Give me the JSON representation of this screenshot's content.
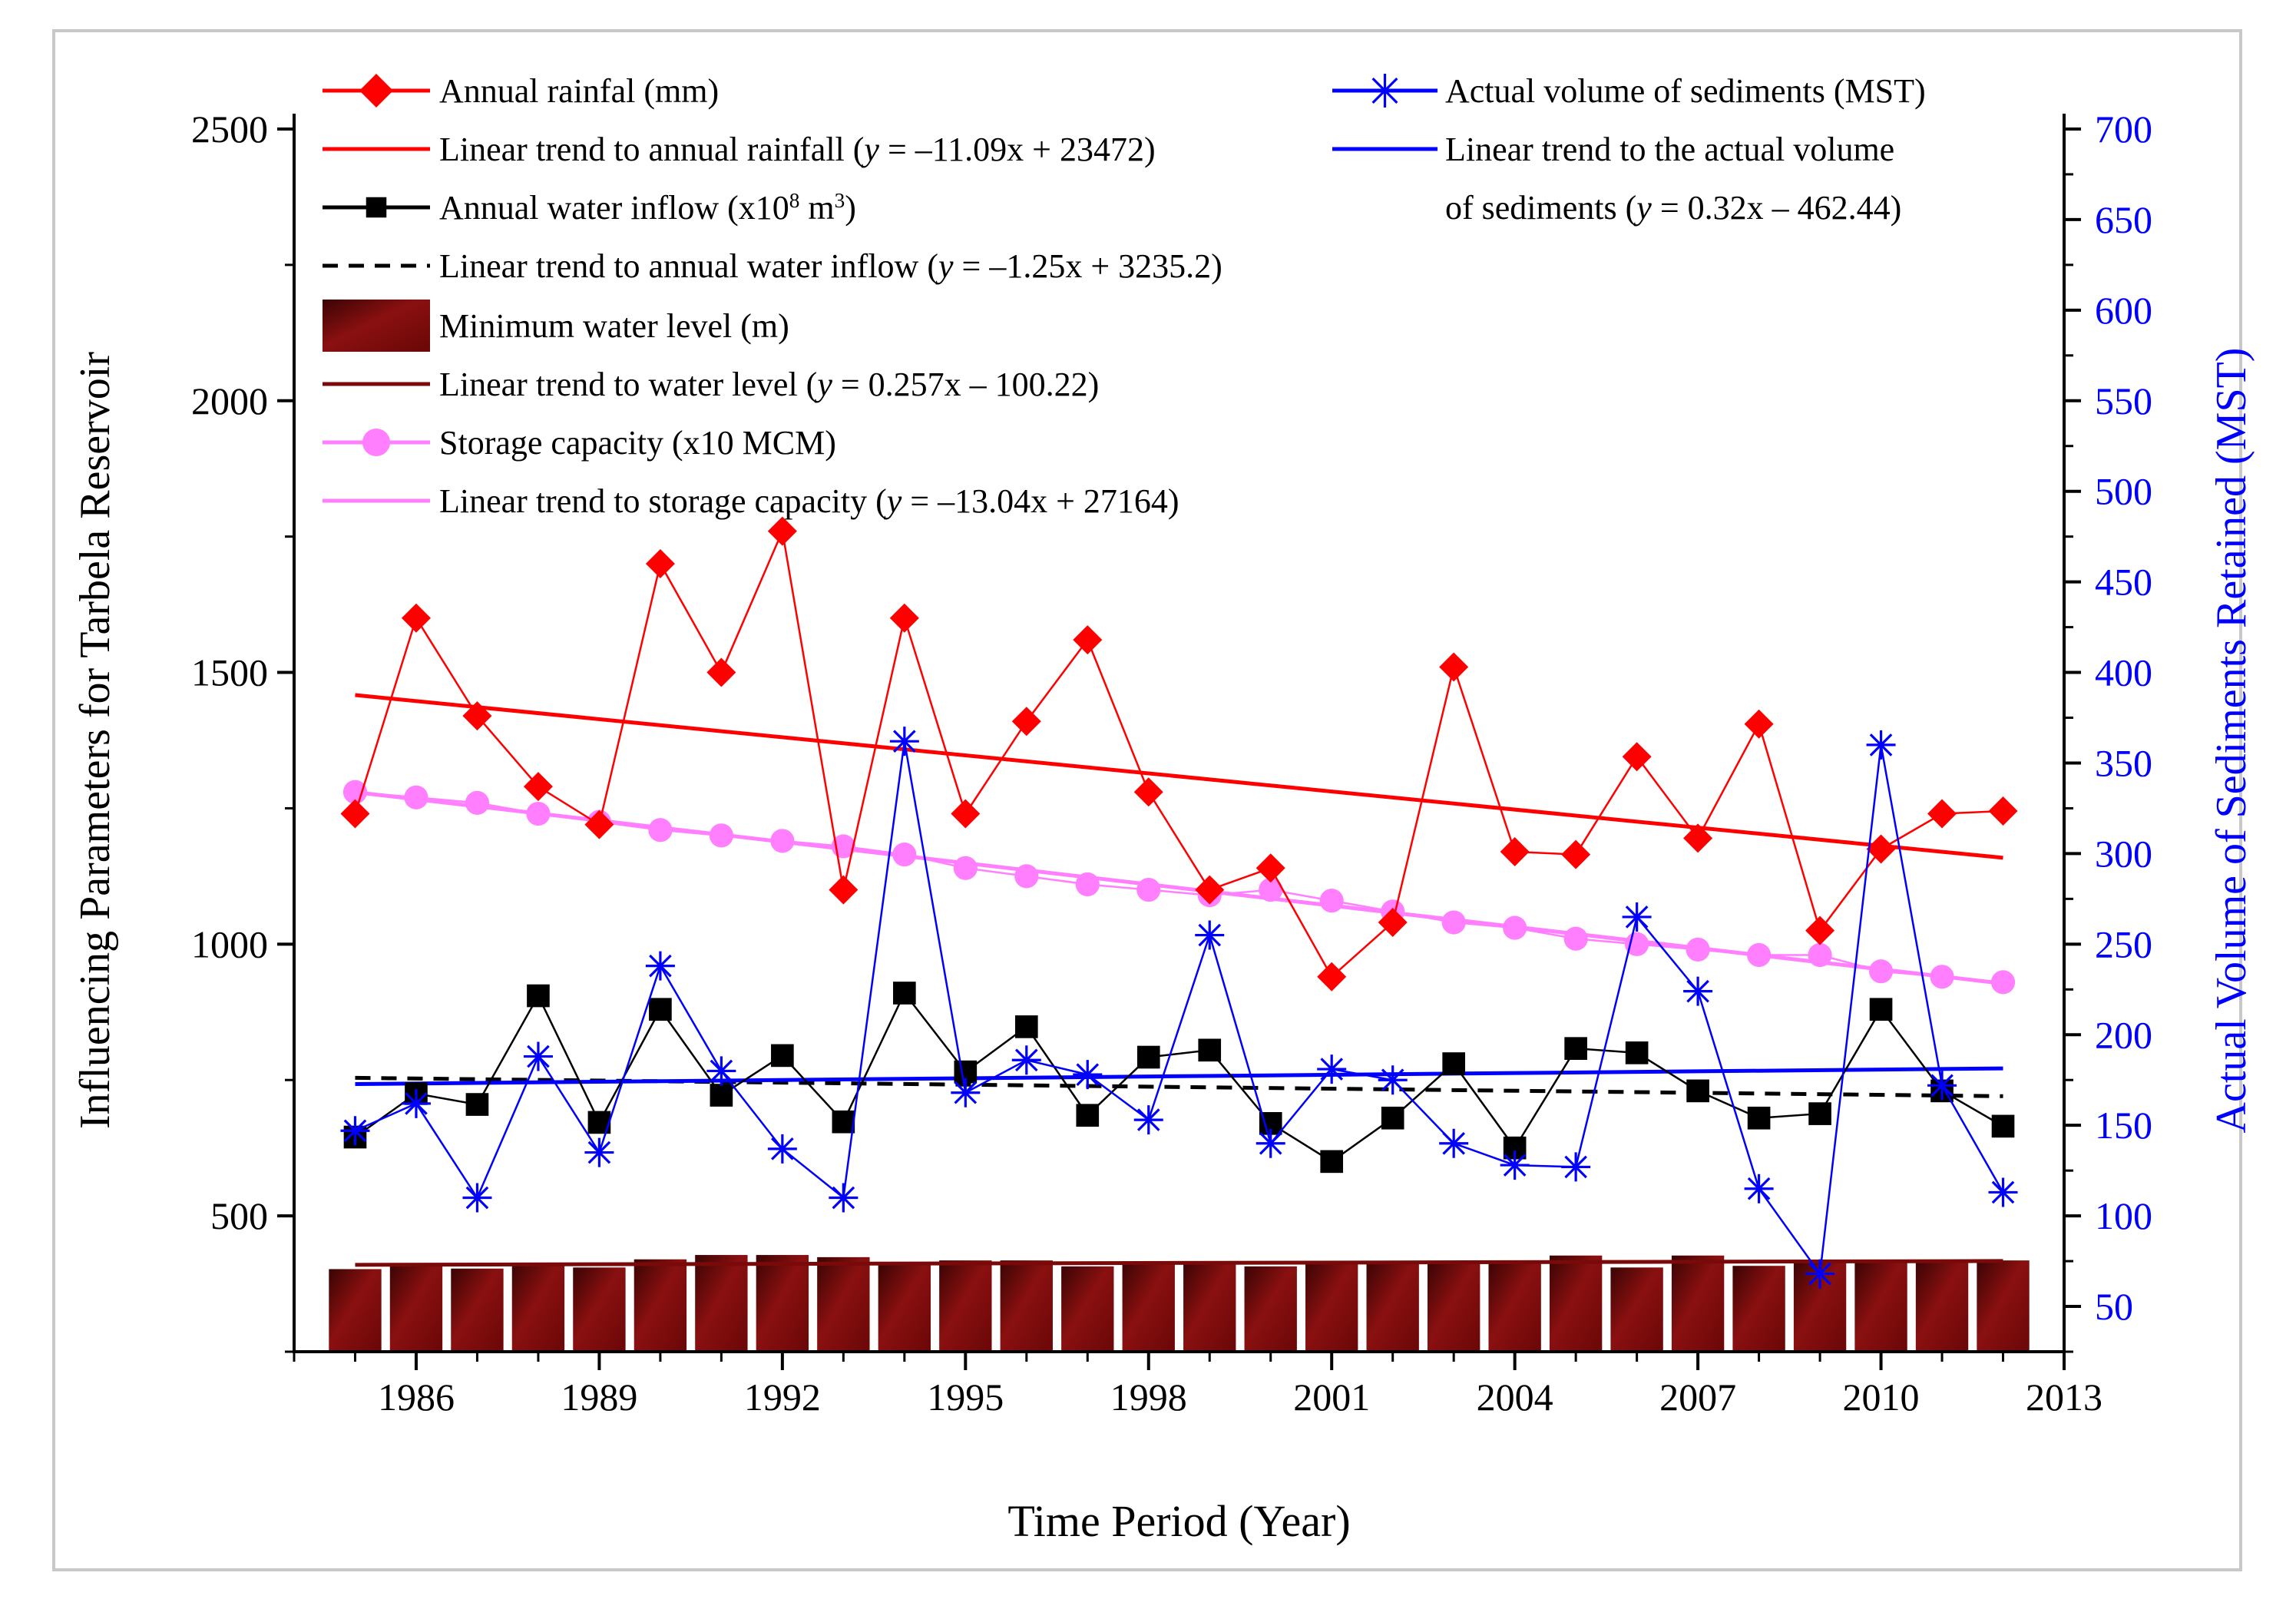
{
  "chart_data": {
    "type": "line",
    "title": "",
    "xlabel": "Time Period (Year)",
    "ylabel": "Influencing Parameters for Tarbela Reservoir",
    "y2label": "Actual Volume of Sediments Retained (MST)",
    "xlim": [
      1984,
      2013
    ],
    "ylim": [
      250,
      2500
    ],
    "y2lim": [
      25,
      700
    ],
    "xticks": [
      1986,
      1989,
      1992,
      1995,
      1998,
      2001,
      2004,
      2007,
      2010,
      2013
    ],
    "yticks": [
      500,
      1000,
      1500,
      2000,
      2500
    ],
    "y2ticks": [
      50,
      100,
      150,
      200,
      250,
      300,
      350,
      400,
      450,
      500,
      550,
      600,
      650,
      700
    ],
    "x": [
      1985,
      1986,
      1987,
      1988,
      1989,
      1990,
      1991,
      1992,
      1993,
      1994,
      1995,
      1996,
      1997,
      1998,
      1999,
      2000,
      2001,
      2002,
      2003,
      2004,
      2005,
      2006,
      2007,
      2008,
      2009,
      2010,
      2011,
      2012
    ],
    "legend_position": "top",
    "series": [
      {
        "name": "Annual rainfal (mm)",
        "axis": "left",
        "kind": "line-marker",
        "marker": "diamond",
        "color": "#ff0000",
        "values": [
          1240,
          1600,
          1420,
          1290,
          1220,
          1700,
          1500,
          1760,
          1100,
          1600,
          1240,
          1410,
          1560,
          1280,
          1100,
          1140,
          940,
          1040,
          1510,
          1170,
          1165,
          1345,
          1195,
          1405,
          1025,
          1175,
          1240,
          1245
        ]
      },
      {
        "name": "Annual water inflow (x10",
        "name_sup": "8",
        "name_mid": " m",
        "name_sup2": "3",
        "name_end": ")",
        "axis": "left",
        "kind": "line-marker",
        "marker": "square",
        "color": "#000000",
        "values": [
          645,
          725,
          705,
          905,
          672,
          880,
          722,
          795,
          673,
          910,
          765,
          848,
          685,
          792,
          805,
          670,
          600,
          680,
          780,
          625,
          808,
          800,
          730,
          680,
          688,
          880,
          730,
          665
        ]
      },
      {
        "name": "Minimum water level (m)",
        "axis": "left",
        "kind": "bar",
        "color": "#7a0a0a",
        "values": [
          402,
          412,
          403,
          414,
          405,
          420,
          428,
          428,
          424,
          410,
          418,
          418,
          407,
          416,
          416,
          407,
          416,
          416,
          415,
          416,
          427,
          405,
          427,
          408,
          418,
          418,
          418,
          418
        ]
      },
      {
        "name": "Storage capacity (x10 MCM)",
        "axis": "left",
        "kind": "line-marker",
        "marker": "circle",
        "color": "#ff7fff",
        "values": [
          1280,
          1270,
          1260,
          1240,
          1225,
          1210,
          1200,
          1190,
          1180,
          1165,
          1140,
          1125,
          1110,
          1100,
          1090,
          1100,
          1080,
          1060,
          1040,
          1030,
          1010,
          1000,
          990,
          980,
          980,
          950,
          940,
          930
        ]
      },
      {
        "name": "Actual volume of sediments (MST)",
        "axis": "right",
        "kind": "line-marker",
        "marker": "asterisk",
        "color": "#0000ff",
        "values": [
          147,
          162,
          110,
          188,
          135,
          238,
          180,
          137,
          110,
          362,
          168,
          186,
          178,
          153,
          255,
          140,
          181,
          175,
          140,
          128,
          127,
          265,
          224,
          115,
          68,
          360,
          172,
          113
        ]
      }
    ],
    "trendlines": [
      {
        "name": "Linear trend to annual rainfall (",
        "eq": "y",
        "eq_rest": " = –11.09x + 23472)",
        "axis": "left",
        "color": "#ff0000",
        "dash": false,
        "slope": -11.09,
        "intercept": 23472,
        "x_range": [
          1985,
          2012
        ]
      },
      {
        "name": "Linear trend to annual water inflow (",
        "eq": "y",
        "eq_rest": " = –1.25x + 3235.2)",
        "axis": "left",
        "color": "#000000",
        "dash": true,
        "slope": -1.25,
        "intercept": 3235.2,
        "x_range": [
          1985,
          2012
        ]
      },
      {
        "name": "Linear trend to water level (",
        "eq": "y",
        "eq_rest": " = 0.257x – 100.22)",
        "axis": "left",
        "color": "#7a0a0a",
        "dash": false,
        "slope": 0.257,
        "intercept": -100.22,
        "x_range": [
          1985,
          2012
        ]
      },
      {
        "name": "Linear trend to storage capacity (",
        "eq": "y",
        "eq_rest": " = –13.04x + 27164)",
        "axis": "left",
        "color": "#ff7fff",
        "dash": false,
        "slope": -13.04,
        "intercept": 27164,
        "x_range": [
          1985,
          2012
        ]
      },
      {
        "name": "Linear trend to the actual volume",
        "name2": "of sediments (",
        "eq": "y",
        "eq_rest": " = 0.32x – 462.44)",
        "axis": "right",
        "color": "#0000ff",
        "dash": false,
        "slope": 0.32,
        "intercept": -462.44,
        "x_range": [
          1985,
          2012
        ]
      }
    ]
  }
}
